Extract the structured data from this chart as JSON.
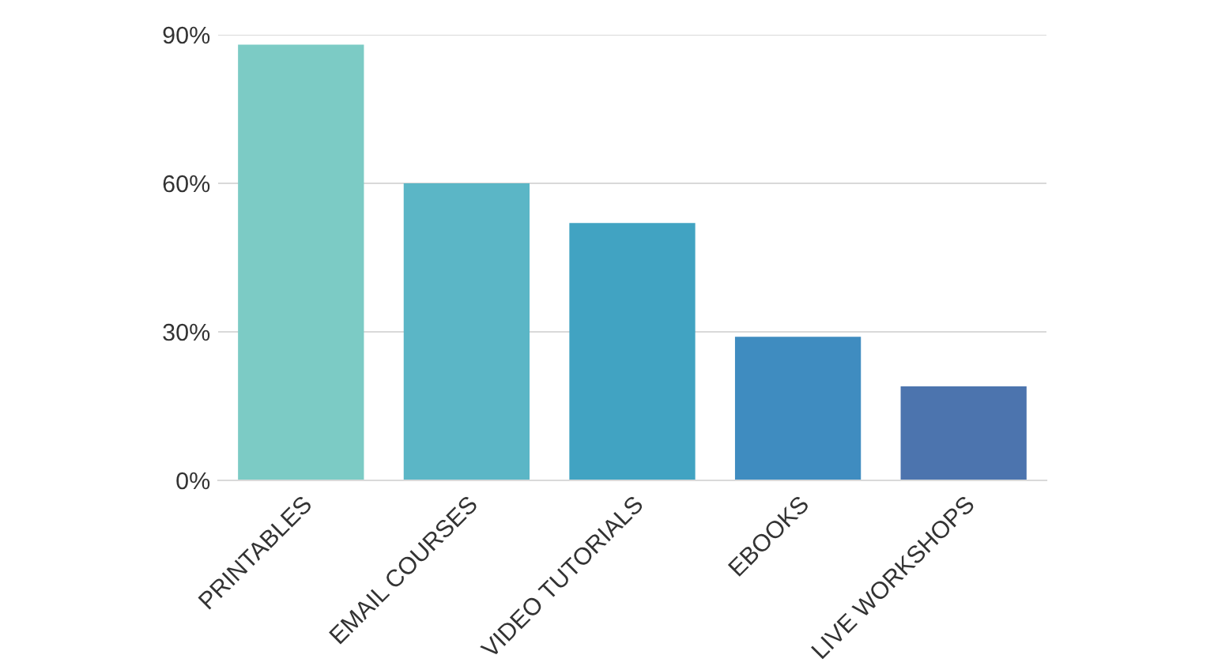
{
  "chart_data": {
    "type": "bar",
    "categories": [
      "PRINTABLES",
      "EMAIL COURSES",
      "VIDEO TUTORIALS",
      "EBOOKS",
      "LIVE WORKSHOPS"
    ],
    "values": [
      88,
      60,
      52,
      29,
      19
    ],
    "colors": [
      "#7ccbc5",
      "#5bb6c6",
      "#41a3c2",
      "#3f8cc0",
      "#4c74ae"
    ],
    "ylim": [
      0,
      90
    ],
    "yticks": [
      {
        "value": 0,
        "label": "0%"
      },
      {
        "value": 30,
        "label": "30%"
      },
      {
        "value": 60,
        "label": "60%"
      },
      {
        "value": 90,
        "label": "90%"
      }
    ],
    "grid": "y"
  }
}
